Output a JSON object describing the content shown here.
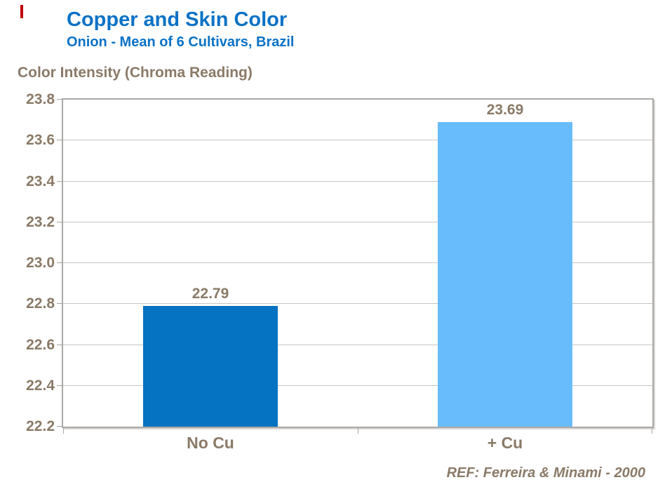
{
  "header": {
    "title": "Copper and Skin Color",
    "subtitle": "Onion - Mean of 6 Cultivars, Brazil",
    "title_color": "#0b72c6"
  },
  "footer": {
    "ref": "REF: Ferreira & Minami - 2000"
  },
  "decoration": {
    "red_mark_color": "#c00000"
  },
  "chart_data": {
    "type": "bar",
    "title": "Copper and Skin Color",
    "subtitle": "Onion - Mean of 6 Cultivars, Brazil",
    "ylabel": "Color Intensity (Chroma Reading)",
    "xlabel": "",
    "categories": [
      "No Cu",
      "+ Cu"
    ],
    "values": [
      22.79,
      23.69
    ],
    "value_labels": [
      "22.79",
      "23.69"
    ],
    "bar_colors": [
      "#0672c2",
      "#68bcfb"
    ],
    "ylim": [
      22.2,
      23.8
    ],
    "ytick_step": 0.2,
    "yticks": [
      "23.8",
      "23.6",
      "23.4",
      "23.2",
      "23.0",
      "22.8",
      "22.6",
      "22.4",
      "22.2"
    ],
    "grid": true,
    "legend": false,
    "text_color": "#8a7a68",
    "axis_color": "#a6a4a1",
    "grid_color": "#c8c5c1"
  }
}
